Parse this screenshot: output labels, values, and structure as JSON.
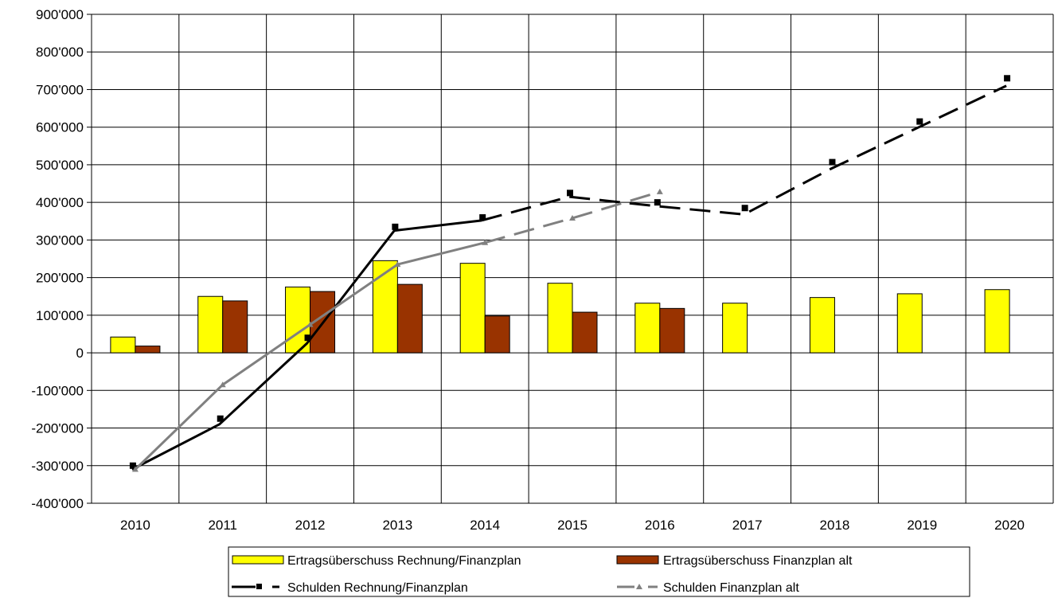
{
  "chart_data": {
    "type": "bar",
    "categories": [
      "2010",
      "2011",
      "2012",
      "2013",
      "2014",
      "2015",
      "2016",
      "2017",
      "2018",
      "2019",
      "2020"
    ],
    "ylim": [
      -400000,
      900000
    ],
    "yticks": [
      900000,
      800000,
      700000,
      600000,
      500000,
      400000,
      300000,
      200000,
      100000,
      0,
      -100000,
      -200000,
      -300000,
      -400000
    ],
    "ytick_labels": [
      "900'000",
      "800'000",
      "700'000",
      "600'000",
      "500'000",
      "400'000",
      "300'000",
      "200'000",
      "100'000",
      "0",
      "-100'000",
      "-200'000",
      "-300'000",
      "-400'000"
    ],
    "grid": true,
    "legend_position": "bottom",
    "series": [
      {
        "name": "Ertragsüberschuss Rechnung/Finanzplan",
        "kind": "bar",
        "color": "#ffff00",
        "values": [
          42000,
          150000,
          175000,
          245000,
          238000,
          185000,
          132000,
          132000,
          147000,
          157000,
          168000
        ]
      },
      {
        "name": "Ertragsüberschuss Finanzplan alt",
        "kind": "bar",
        "color": "#993300",
        "values": [
          18000,
          138000,
          163000,
          182000,
          98000,
          108000,
          118000,
          null,
          null,
          null,
          null
        ]
      },
      {
        "name": "Schulden Rechnung/Finanzplan",
        "kind": "line",
        "color": "#000000",
        "marker": "square",
        "solid_until_index": 4,
        "values": [
          -310000,
          -190000,
          25000,
          325000,
          352000,
          415000,
          390000,
          368000,
          490000,
          600000,
          710000
        ],
        "marker_values": [
          -300000,
          -175000,
          40000,
          335000,
          360000,
          425000,
          400000,
          385000,
          507000,
          615000,
          730000
        ]
      },
      {
        "name": "Schulden Finanzplan alt",
        "kind": "line",
        "color": "#808080",
        "marker": "triangle",
        "solid_until_index": 4,
        "values": [
          -310000,
          -85000,
          75000,
          235000,
          293000,
          358000,
          428000,
          null,
          null,
          null,
          null
        ]
      }
    ]
  },
  "legend": {
    "items": [
      {
        "label": "Ertragsüberschuss Rechnung/Finanzplan"
      },
      {
        "label": "Ertragsüberschuss Finanzplan alt"
      },
      {
        "label": "Schulden Rechnung/Finanzplan"
      },
      {
        "label": "Schulden Finanzplan alt"
      }
    ]
  }
}
